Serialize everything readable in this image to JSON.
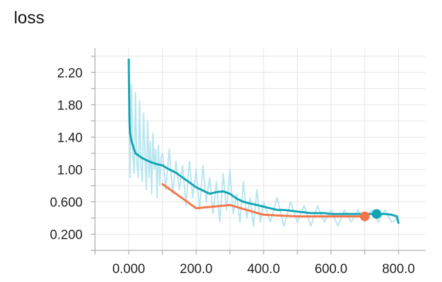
{
  "chart_data": {
    "type": "line",
    "title": "loss",
    "xlabel": "",
    "ylabel": "",
    "xlim": [
      -100,
      880
    ],
    "ylim": [
      0.0,
      2.5
    ],
    "grid": true,
    "x_ticks": [
      {
        "value": 0,
        "label": "0.000"
      },
      {
        "value": 200,
        "label": "200.0"
      },
      {
        "value": 400,
        "label": "400.0"
      },
      {
        "value": 600,
        "label": "600.0"
      },
      {
        "value": 800,
        "label": "800.0"
      }
    ],
    "y_ticks": [
      {
        "value": 0.2,
        "label": "0.200"
      },
      {
        "value": 0.6,
        "label": "0.600"
      },
      {
        "value": 1.0,
        "label": "1.00"
      },
      {
        "value": 1.4,
        "label": "1.40"
      },
      {
        "value": 1.8,
        "label": "1.80"
      },
      {
        "value": 2.2,
        "label": "2.20"
      }
    ],
    "series": [
      {
        "name": "",
        "color": "#b9e6ee",
        "role": "raw",
        "x": [
          0,
          4,
          8,
          12,
          16,
          20,
          24,
          28,
          32,
          36,
          40,
          44,
          48,
          52,
          56,
          60,
          64,
          68,
          72,
          76,
          80,
          84,
          88,
          92,
          96,
          100,
          110,
          120,
          130,
          140,
          150,
          160,
          170,
          180,
          190,
          200,
          210,
          220,
          230,
          240,
          250,
          260,
          270,
          280,
          290,
          300,
          310,
          320,
          330,
          340,
          350,
          360,
          370,
          380,
          390,
          400,
          420,
          440,
          460,
          480,
          500,
          520,
          540,
          560,
          580,
          600,
          620,
          640,
          660,
          680,
          700,
          720,
          740,
          760,
          780,
          800
        ],
        "y": [
          2.35,
          0.9,
          2.05,
          1.2,
          0.95,
          1.95,
          1.1,
          0.9,
          1.85,
          1.05,
          0.85,
          1.7,
          1.2,
          0.75,
          1.6,
          0.9,
          1.35,
          0.7,
          1.45,
          1.0,
          1.25,
          0.65,
          1.3,
          0.8,
          1.15,
          1.2,
          0.75,
          1.25,
          0.7,
          1.1,
          0.75,
          1.05,
          0.55,
          1.1,
          0.65,
          1.0,
          0.5,
          1.05,
          0.6,
          0.9,
          0.45,
          0.85,
          0.35,
          0.95,
          0.5,
          1.0,
          0.45,
          0.7,
          0.35,
          0.85,
          0.4,
          0.65,
          0.3,
          0.75,
          0.35,
          0.6,
          0.35,
          0.65,
          0.3,
          0.6,
          0.35,
          0.55,
          0.3,
          0.55,
          0.35,
          0.5,
          0.3,
          0.5,
          0.35,
          0.5,
          0.35,
          0.5,
          0.35,
          0.5,
          0.35,
          0.4
        ]
      },
      {
        "name": "",
        "color": "#12a4b4",
        "role": "smoothed",
        "x": [
          0,
          2,
          4,
          8,
          12,
          16,
          20,
          30,
          40,
          50,
          60,
          80,
          100,
          120,
          140,
          160,
          180,
          200,
          220,
          240,
          260,
          280,
          300,
          320,
          340,
          360,
          380,
          400,
          420,
          440,
          460,
          480,
          500,
          520,
          540,
          560,
          580,
          600,
          620,
          640,
          660,
          680,
          700,
          720,
          740,
          760,
          780,
          795,
          800
        ],
        "y": [
          2.36,
          1.6,
          1.45,
          1.35,
          1.3,
          1.25,
          1.2,
          1.17,
          1.14,
          1.12,
          1.1,
          1.07,
          1.05,
          1.0,
          0.96,
          0.9,
          0.84,
          0.78,
          0.74,
          0.7,
          0.72,
          0.73,
          0.7,
          0.64,
          0.6,
          0.58,
          0.56,
          0.54,
          0.52,
          0.5,
          0.5,
          0.49,
          0.48,
          0.47,
          0.46,
          0.46,
          0.46,
          0.45,
          0.45,
          0.45,
          0.45,
          0.45,
          0.45,
          0.45,
          0.45,
          0.45,
          0.44,
          0.42,
          0.34
        ]
      },
      {
        "name": "",
        "color": "#f47549",
        "role": "eval",
        "x": [
          100,
          200,
          300,
          400,
          500,
          600,
          700
        ],
        "y": [
          0.82,
          0.52,
          0.56,
          0.44,
          0.42,
          0.42,
          0.42
        ]
      }
    ],
    "highlight_points": [
      {
        "series": 2,
        "x": 700,
        "y": 0.42,
        "color": "#f47549"
      },
      {
        "series": 1,
        "x": 735,
        "y": 0.45,
        "color": "#12a4b4"
      }
    ]
  }
}
